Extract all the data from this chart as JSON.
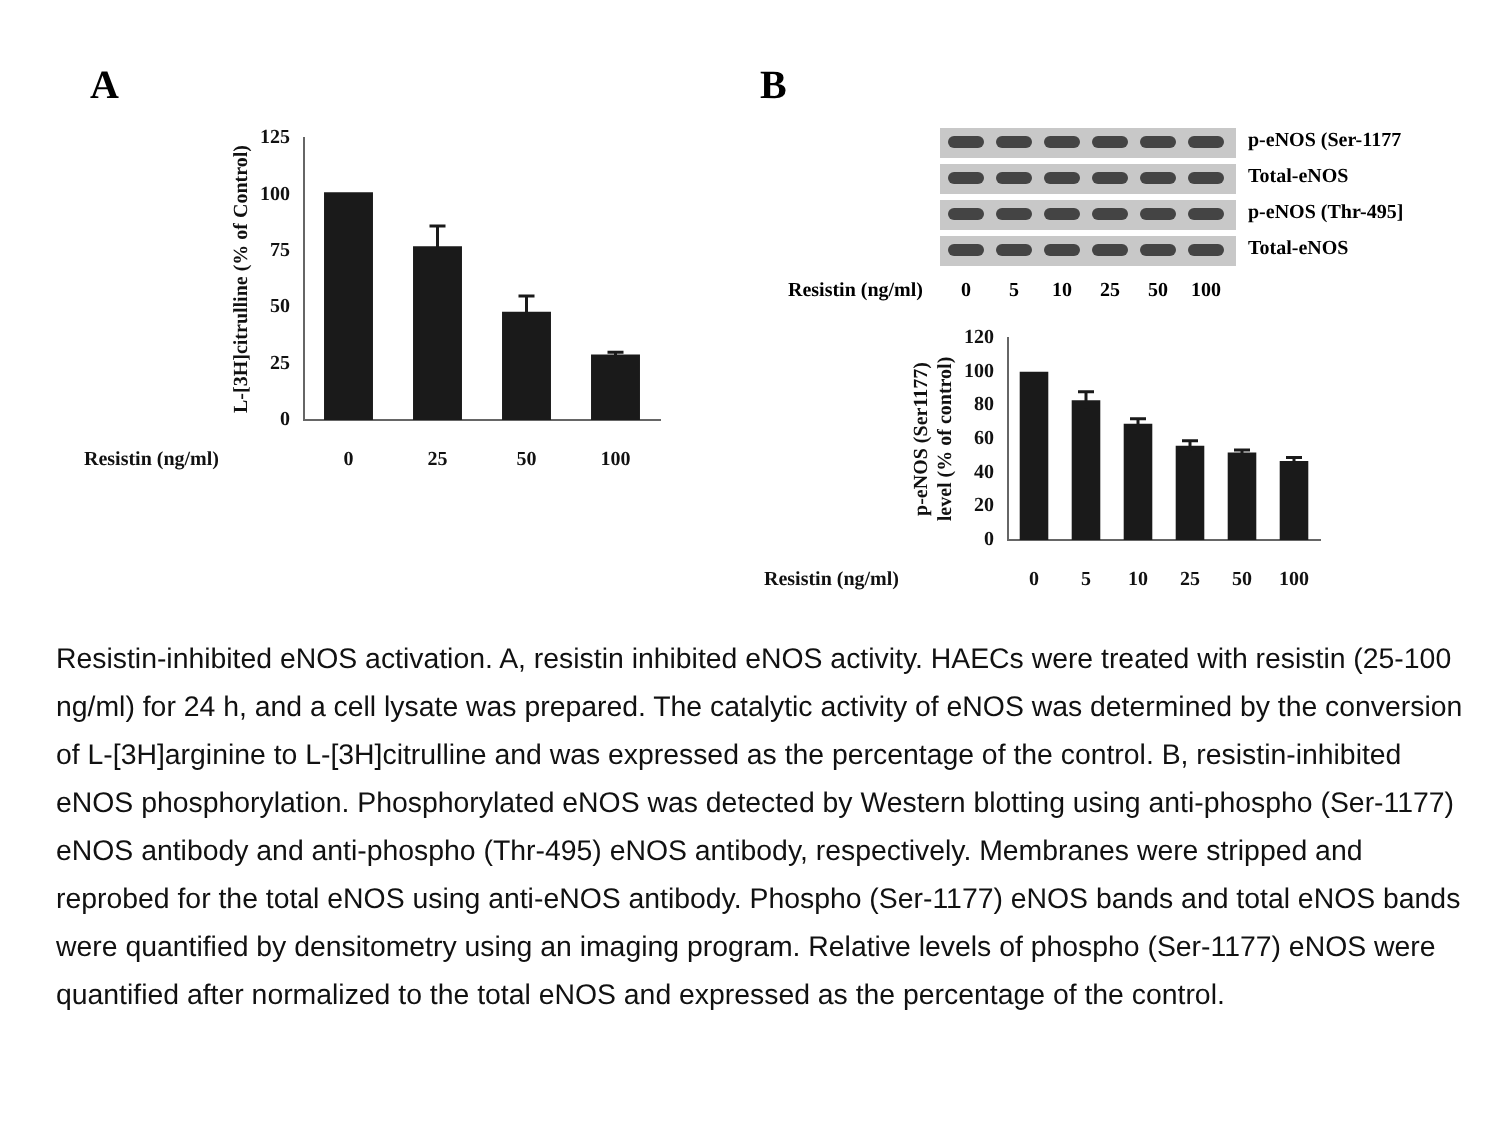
{
  "chart_data": [
    {
      "type": "bar",
      "title": "A",
      "xlabel": "Resistin (ng/ml)",
      "ylabel": "L-[3H]citrulline (% of Control)",
      "categories": [
        "0",
        "25",
        "50",
        "100"
      ],
      "values": [
        101,
        77,
        48,
        29
      ],
      "errors": [
        null,
        9,
        7,
        1
      ],
      "color": "#1a1a1a",
      "ylim": [
        0,
        125
      ],
      "yticks": [
        0,
        25,
        50,
        75,
        100,
        125
      ],
      "grid": false,
      "legend": false
    },
    {
      "type": "bar",
      "title": "B",
      "xlabel": "Resistin (ng/ml)",
      "ylabel": "p-eNOS (Ser1177) level (% of control)",
      "categories": [
        "0",
        "5",
        "10",
        "25",
        "50",
        "100"
      ],
      "values": [
        100,
        83,
        69,
        56,
        52,
        47
      ],
      "errors": [
        null,
        5,
        3,
        3,
        1.5,
        2
      ],
      "color": "#1a1a1a",
      "ylim": [
        0,
        120
      ],
      "yticks": [
        0,
        20,
        40,
        60,
        80,
        100,
        120
      ],
      "grid": false,
      "legend": false,
      "annotations": [
        "p-eNOS (Ser-1177",
        "Total-eNOS",
        "p-eNOS (Thr-495]",
        "Total-eNOS",
        "Resistin-inhibited eNOS activation. A, resistin inhibited eNOS activity. HAECs were treated with resistin (25-100 ng/ml) for 24 h, and a cell lysate was prepared. The catalytic activity of eNOS was determined by the conversion of L-[3H]arginine to L-[3H]citrulline and was expressed as the percentage of the control. B, resistin-inhibited eNOS phosphorylation. Phosphorylated eNOS was detected by Western blotting using anti-phospho (Ser-1177) eNOS antibody and anti-phospho (Thr-495) eNOS antibody, respectively. Membranes were stripped and reprobed for the total eNOS using anti-eNOS antibody. Phospho (Ser-1177) eNOS bands and total eNOS bands were quantified by densitometry using an imaging program. Relative levels of phospho (Ser-1177) eNOS were quantified after normalized to the total eNOS and expressed as the percentage of the control."
      ]
    }
  ]
}
